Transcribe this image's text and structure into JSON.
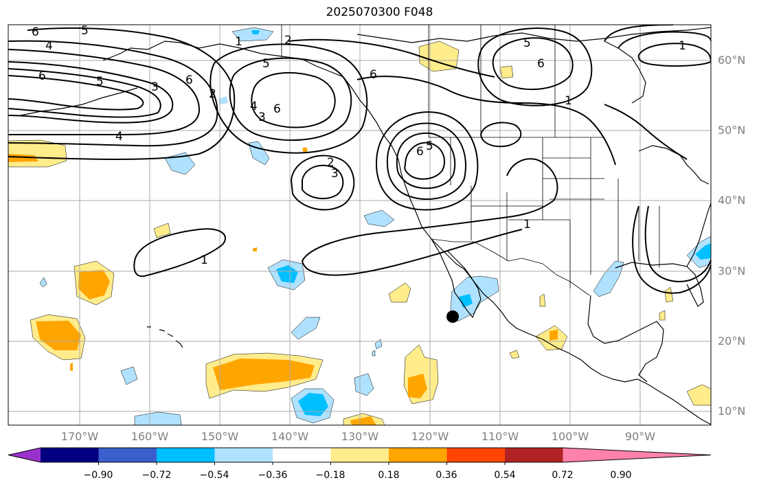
{
  "title": "2025070300 F048",
  "map": {
    "lat_labels": [
      "60°N",
      "50°N",
      "40°N",
      "30°N",
      "20°N",
      "10°N"
    ],
    "lon_labels": [
      "170°W",
      "160°W",
      "150°W",
      "140°W",
      "130°W",
      "120°W",
      "110°W",
      "100°W",
      "90°W"
    ],
    "contour_labels": [
      "6",
      "5",
      "4",
      "6",
      "5",
      "4",
      "3",
      "2",
      "1",
      "2",
      "5",
      "6",
      "4",
      "3",
      "6",
      "2",
      "3",
      "6",
      "5",
      "6",
      "5",
      "6",
      "1",
      "1",
      "1",
      "1"
    ],
    "marker": "filled-circle"
  },
  "colorbar": {
    "ticks": [
      "−0.90",
      "−0.72",
      "−0.54",
      "−0.36",
      "−0.18",
      "0.18",
      "0.36",
      "0.54",
      "0.72",
      "0.90"
    ],
    "colors": [
      "#9932cc",
      "#000080",
      "#3a5fcd",
      "#00bfff",
      "#b0e2ff",
      "#ffffff",
      "#ffec8b",
      "#ffa500",
      "#ff4500",
      "#b22222",
      "#ff82ab"
    ]
  }
}
